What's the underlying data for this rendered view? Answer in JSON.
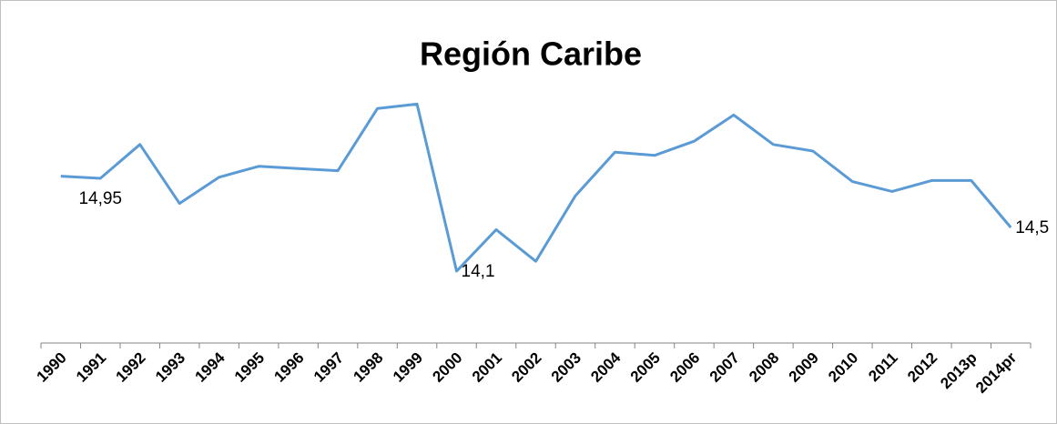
{
  "chart_data": {
    "type": "line",
    "title": "Región Caribe",
    "categories": [
      "1990",
      "1991",
      "1992",
      "1993",
      "1994",
      "1995",
      "1996",
      "1997",
      "1998",
      "1999",
      "2000",
      "2001",
      "2002",
      "2003",
      "2004",
      "2005",
      "2006",
      "2007",
      "2008",
      "2009",
      "2010",
      "2011",
      "2012",
      "2013p",
      "2014pr"
    ],
    "values": [
      14.97,
      14.95,
      15.26,
      14.72,
      14.96,
      15.06,
      15.04,
      15.02,
      15.59,
      15.63,
      14.1,
      14.48,
      14.19,
      14.79,
      15.19,
      15.16,
      15.29,
      15.53,
      15.26,
      15.2,
      14.92,
      14.83,
      14.93,
      14.93,
      14.5
    ],
    "value_labels": [
      null,
      "14,95",
      null,
      null,
      null,
      null,
      null,
      null,
      null,
      null,
      "14,1",
      null,
      null,
      null,
      null,
      null,
      null,
      null,
      null,
      null,
      null,
      null,
      null,
      null,
      "14,5"
    ],
    "color": "#5b9bd5",
    "ylim": [
      13.5,
      15.8
    ]
  }
}
